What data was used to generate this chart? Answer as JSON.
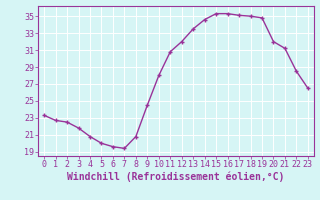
{
  "x": [
    0,
    1,
    2,
    3,
    4,
    5,
    6,
    7,
    8,
    9,
    10,
    11,
    12,
    13,
    14,
    15,
    16,
    17,
    18,
    19,
    20,
    21,
    22,
    23
  ],
  "y": [
    23.3,
    22.7,
    22.5,
    21.8,
    20.8,
    20.0,
    19.6,
    19.4,
    20.8,
    24.5,
    28.0,
    30.8,
    32.0,
    33.5,
    34.6,
    35.3,
    35.3,
    35.1,
    35.0,
    34.8,
    32.0,
    31.2,
    28.5,
    26.5
  ],
  "line_color": "#993399",
  "marker": "+",
  "marker_size": 3.5,
  "line_width": 1.0,
  "xlabel": "Windchill (Refroidissement éolien,°C)",
  "xlabel_fontsize": 7,
  "xtick_labels": [
    "0",
    "1",
    "2",
    "3",
    "4",
    "5",
    "6",
    "7",
    "8",
    "9",
    "10",
    "11",
    "12",
    "13",
    "14",
    "15",
    "16",
    "17",
    "18",
    "19",
    "20",
    "21",
    "22",
    "23"
  ],
  "ytick_values": [
    19,
    21,
    23,
    25,
    27,
    29,
    31,
    33,
    35
  ],
  "ylim": [
    18.5,
    36.2
  ],
  "xlim": [
    -0.5,
    23.5
  ],
  "bg_color": "#d6f5f5",
  "grid_color": "#b0dede",
  "tick_color": "#993399",
  "tick_fontsize": 6,
  "tick_fontfamily": "monospace"
}
